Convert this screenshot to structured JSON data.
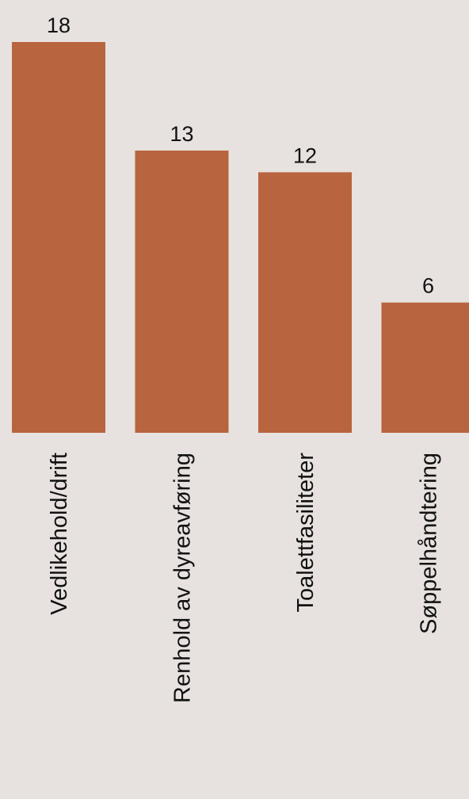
{
  "chart_data": {
    "type": "bar",
    "title": "",
    "xlabel": "",
    "ylabel": "",
    "categories": [
      "Vedlikehold/drift",
      "Renhold av dyreavføring",
      "Toalettfasiliteter",
      "Søppelhåndtering"
    ],
    "values": [
      18,
      13,
      12,
      6
    ],
    "ylim": [
      0,
      18
    ],
    "grid": false,
    "legend": "none",
    "bar_color": "#b8643f",
    "background_color": "#e7e2df",
    "text_color": "#111111"
  }
}
